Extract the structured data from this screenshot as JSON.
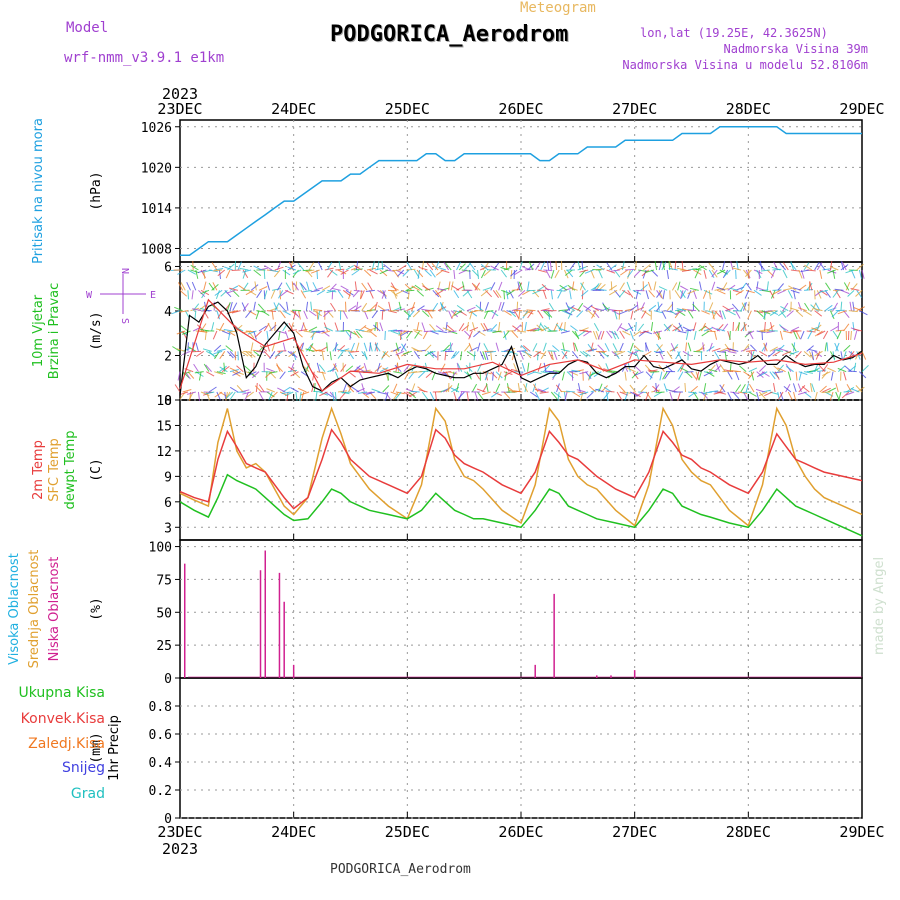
{
  "header": {
    "model_label": "Model",
    "model_name": "wrf-nmm_v3.9.1 e1km",
    "meteogram_label": "Meteogram",
    "station": "PODGORICA_Aerodrom",
    "lonlat": "lon,lat (19.25E, 42.3625N)",
    "altitude": "Nadmorska Visina 39m",
    "model_altitude": "Nadmorska Visina u modelu 52.8106m"
  },
  "footer": {
    "station": "PODGORICA_Aerodrom",
    "credit": "made by Angel"
  },
  "colors": {
    "pressure": "#1ea0e0",
    "temp2m": "#e83c3c",
    "sfc": "#e0a030",
    "dewpt": "#20c020",
    "high_cloud": "#20b0e0",
    "mid_cloud": "#e0a030",
    "low_cloud": "#d02090",
    "total_precip": "#20c020",
    "conv_precip": "#e83c3c",
    "frozen_precip": "#f07820",
    "snow": "#4040e0",
    "hail": "#20c0c0",
    "wind_speed_line": "#000000",
    "wind_label": "#20c020"
  },
  "chart_data": [
    {
      "type": "line",
      "panel": "pressure",
      "ylabel_side": "Pritisak na nivou mora",
      "unit": "(hPa)",
      "x_ticks": [
        "23DEC",
        "24DEC",
        "25DEC",
        "26DEC",
        "27DEC",
        "28DEC",
        "29DEC"
      ],
      "x_year": "2023",
      "xlim_hours": [
        0,
        144
      ],
      "ylim": [
        1006,
        1027
      ],
      "y_ticks": [
        1008,
        1014,
        1020,
        1026
      ],
      "grid": true,
      "series": [
        {
          "hours": [
            0,
            2,
            4,
            6,
            8,
            10,
            12,
            14,
            16,
            18,
            20,
            22,
            24,
            26,
            28,
            30,
            32,
            34,
            36,
            38,
            40,
            42,
            44,
            46,
            48,
            50,
            52,
            54,
            56,
            58,
            60,
            62,
            64,
            66,
            68,
            70,
            72,
            74,
            76,
            78,
            80,
            82,
            84,
            86,
            88,
            90,
            92,
            94,
            96,
            98,
            100,
            102,
            104,
            106,
            108,
            110,
            112,
            114,
            116,
            118,
            120,
            122,
            124,
            126,
            128,
            130,
            132,
            134,
            136,
            138,
            140,
            142,
            144
          ],
          "values": [
            1007,
            1007,
            1008,
            1009,
            1009,
            1009,
            1010,
            1011,
            1012,
            1013,
            1014,
            1015,
            1015,
            1016,
            1017,
            1018,
            1018,
            1018,
            1019,
            1019,
            1020,
            1021,
            1021,
            1021,
            1021,
            1021,
            1022,
            1022,
            1021,
            1021,
            1022,
            1022,
            1022,
            1022,
            1022,
            1022,
            1022,
            1022,
            1021,
            1021,
            1022,
            1022,
            1022,
            1023,
            1023,
            1023,
            1023,
            1024,
            1024,
            1024,
            1024,
            1024,
            1024,
            1025,
            1025,
            1025,
            1025,
            1026,
            1026,
            1026,
            1026,
            1026,
            1026,
            1026,
            1025,
            1025,
            1025,
            1025,
            1025,
            1025,
            1025,
            1025,
            1025
          ]
        }
      ]
    },
    {
      "type": "line",
      "panel": "wind",
      "ylabel_side": [
        "10m Vjetar",
        "Brzina i Pravac"
      ],
      "unit": "(m/s)",
      "compass": {
        "n": "N",
        "s": "S",
        "e": "E",
        "w": "W"
      },
      "ylim": [
        0,
        6.2
      ],
      "y_ticks": [
        0,
        2,
        4,
        6
      ],
      "grid": true,
      "series": [
        {
          "name": "speed",
          "hours": [
            0,
            2,
            4,
            6,
            8,
            10,
            12,
            14,
            16,
            18,
            20,
            22,
            24,
            26,
            28,
            30,
            32,
            34,
            36,
            38,
            40,
            42,
            44,
            46,
            48,
            50,
            52,
            54,
            56,
            58,
            60,
            62,
            64,
            66,
            68,
            70,
            72,
            74,
            76,
            78,
            80,
            82,
            84,
            86,
            88,
            90,
            92,
            94,
            96,
            98,
            100,
            102,
            104,
            106,
            108,
            110,
            112,
            114,
            116,
            118,
            120,
            122,
            124,
            126,
            128,
            130,
            132,
            134,
            136,
            138,
            140,
            142,
            144
          ],
          "values": [
            0.2,
            3.8,
            3.5,
            4.2,
            4.4,
            4.0,
            3.0,
            1.0,
            1.5,
            2.5,
            3.0,
            3.5,
            3.0,
            1.5,
            0.6,
            0.4,
            0.8,
            1.0,
            0.6,
            0.9,
            1.0,
            1.1,
            1.2,
            1.0,
            1.3,
            1.5,
            1.4,
            1.2,
            1.1,
            1.0,
            1.0,
            1.2,
            1.2,
            1.4,
            1.6,
            2.4,
            1.0,
            0.8,
            1.0,
            1.2,
            1.2,
            1.6,
            1.8,
            1.7,
            1.2,
            1.0,
            1.2,
            1.5,
            1.5,
            2.0,
            1.5,
            1.4,
            1.6,
            1.8,
            1.4,
            1.3,
            1.6,
            1.8,
            1.7,
            1.6,
            1.7,
            2.0,
            1.6,
            1.6,
            2.0,
            1.7,
            1.5,
            1.6,
            1.6,
            2.0,
            1.8,
            1.9,
            2.2
          ]
        },
        {
          "name": "gust",
          "hours": [
            0,
            6,
            12,
            18,
            24,
            30,
            36,
            42,
            48,
            54,
            60,
            66,
            72,
            78,
            84,
            90,
            96,
            102,
            108,
            114,
            120,
            126,
            132,
            138,
            144
          ],
          "values": [
            0.5,
            4.5,
            3.2,
            2.4,
            2.8,
            0.4,
            1.3,
            1.2,
            1.6,
            1.4,
            1.4,
            1.7,
            1.1,
            1.6,
            1.8,
            1.3,
            1.8,
            1.7,
            1.6,
            1.8,
            1.7,
            1.8,
            1.6,
            1.7,
            2.1
          ]
        }
      ]
    },
    {
      "type": "line",
      "panel": "temperature",
      "ylabel_side": [
        "2m Temp",
        "SFC Temp",
        "dewpt Temp"
      ],
      "unit": "(C)",
      "ylim": [
        1.5,
        18
      ],
      "y_ticks": [
        3,
        6,
        9,
        12,
        15,
        18
      ],
      "grid": true,
      "series": [
        {
          "name": "2m Temp",
          "hours": [
            0,
            3,
            6,
            8,
            10,
            12,
            14,
            16,
            18,
            20,
            22,
            24,
            27,
            30,
            32,
            34,
            36,
            38,
            40,
            44,
            48,
            51,
            54,
            56,
            58,
            60,
            62,
            64,
            68,
            72,
            75,
            78,
            80,
            82,
            84,
            86,
            88,
            92,
            96,
            99,
            102,
            104,
            106,
            108,
            110,
            112,
            116,
            120,
            123,
            126,
            128,
            130,
            132,
            134,
            136,
            140,
            144
          ],
          "values": [
            7.2,
            6.5,
            6.0,
            11.0,
            14.3,
            12.5,
            10.5,
            10.0,
            9.5,
            8.0,
            6.5,
            5.2,
            6.5,
            11.0,
            14.5,
            13.0,
            11.0,
            10.0,
            9.0,
            8.0,
            7.0,
            9.0,
            14.5,
            13.5,
            11.5,
            10.5,
            10.0,
            9.5,
            8.0,
            7.0,
            9.5,
            14.3,
            13.0,
            11.5,
            11.0,
            10.0,
            9.0,
            7.5,
            6.5,
            9.5,
            14.3,
            13.0,
            11.5,
            11.0,
            10.0,
            9.5,
            8.0,
            7.0,
            9.5,
            14.0,
            12.5,
            11.0,
            10.5,
            10.0,
            9.5,
            9.0,
            8.5
          ]
        },
        {
          "name": "SFC Temp",
          "hours": [
            0,
            3,
            6,
            8,
            10,
            12,
            14,
            16,
            18,
            20,
            22,
            24,
            27,
            30,
            32,
            34,
            36,
            38,
            40,
            44,
            48,
            51,
            54,
            56,
            58,
            60,
            62,
            64,
            68,
            72,
            75,
            78,
            80,
            82,
            84,
            86,
            88,
            92,
            96,
            99,
            102,
            104,
            106,
            108,
            110,
            112,
            116,
            120,
            123,
            126,
            128,
            130,
            132,
            134,
            136,
            140,
            144
          ],
          "values": [
            7.0,
            6.2,
            5.5,
            13.0,
            17.0,
            12.0,
            10.0,
            10.5,
            9.5,
            7.5,
            5.5,
            4.5,
            6.5,
            13.5,
            17.0,
            14.0,
            10.5,
            9.0,
            7.5,
            5.5,
            4.0,
            8.0,
            17.0,
            15.5,
            11.0,
            9.0,
            8.5,
            7.5,
            5.0,
            3.5,
            8.0,
            17.0,
            15.5,
            11.0,
            9.0,
            8.0,
            7.5,
            5.0,
            3.2,
            8.0,
            17.0,
            15.0,
            11.0,
            9.5,
            8.5,
            8.0,
            5.0,
            3.2,
            8.0,
            17.0,
            15.0,
            11.0,
            9.0,
            7.5,
            6.5,
            5.5,
            4.5
          ]
        },
        {
          "name": "dewpt Temp",
          "hours": [
            0,
            3,
            6,
            8,
            10,
            12,
            14,
            16,
            18,
            20,
            22,
            24,
            27,
            30,
            32,
            34,
            36,
            38,
            40,
            44,
            48,
            51,
            54,
            56,
            58,
            60,
            62,
            64,
            68,
            72,
            75,
            78,
            80,
            82,
            84,
            86,
            88,
            92,
            96,
            99,
            102,
            104,
            106,
            108,
            110,
            112,
            116,
            120,
            123,
            126,
            128,
            130,
            132,
            134,
            136,
            140,
            144
          ],
          "values": [
            6.0,
            5.0,
            4.2,
            6.5,
            9.2,
            8.5,
            8.0,
            7.5,
            6.5,
            5.5,
            4.5,
            3.8,
            4.0,
            6.0,
            7.5,
            7.0,
            6.0,
            5.5,
            5.0,
            4.5,
            4.0,
            5.0,
            7.0,
            6.0,
            5.0,
            4.5,
            4.0,
            4.0,
            3.5,
            3.0,
            5.0,
            7.5,
            7.0,
            5.5,
            5.0,
            4.5,
            4.0,
            3.5,
            3.0,
            5.0,
            7.5,
            7.0,
            5.5,
            5.0,
            4.5,
            4.2,
            3.5,
            3.0,
            5.0,
            7.5,
            6.5,
            5.5,
            5.0,
            4.5,
            4.0,
            3.0,
            2.0
          ]
        }
      ]
    },
    {
      "type": "bar",
      "panel": "cloud",
      "ylabel_side": [
        "Visoka Oblacnost",
        "Srednja Oblacnost",
        "Niska Oblacnost"
      ],
      "unit": "(%)",
      "ylim": [
        0,
        105
      ],
      "y_ticks": [
        0,
        25,
        50,
        75,
        100
      ],
      "grid": true,
      "series": [
        {
          "name": "Niska Oblacnost",
          "hours": [
            1,
            17,
            18,
            21,
            22,
            24,
            75,
            79,
            88,
            91,
            96
          ],
          "values": [
            87,
            82,
            97,
            80,
            58,
            10,
            10,
            64,
            2,
            2,
            6
          ]
        }
      ]
    },
    {
      "type": "bar",
      "panel": "precip",
      "ylabel_side": "1hr Precip",
      "unit": "(mm)",
      "legend": [
        "Ukupna Kisa",
        "Konvek.Kisa",
        "Zaledj.Kisa",
        "Snijeg",
        "Grad"
      ],
      "ylim": [
        0,
        1.0
      ],
      "y_ticks": [
        "0",
        "0.2",
        "0.4",
        "0.6",
        "0.8"
      ],
      "grid": true,
      "series": []
    }
  ]
}
